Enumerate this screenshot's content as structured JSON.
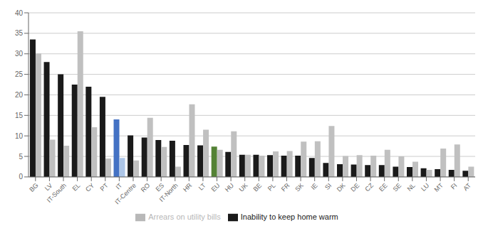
{
  "chart_data": {
    "type": "bar",
    "categories": [
      "BG",
      "LV",
      "IT-South",
      "EL",
      "CY",
      "PT",
      "IT",
      "IT-Centre",
      "RO",
      "ES",
      "IT-North",
      "HR",
      "LT",
      "EU",
      "HU",
      "UK",
      "BE",
      "PL",
      "FR",
      "SK",
      "IE",
      "SI",
      "DK",
      "DE",
      "CZ",
      "EE",
      "SE",
      "NL",
      "LU",
      "MT",
      "FI",
      "AT"
    ],
    "series": [
      {
        "name": "Inability to keep home warm",
        "color": "#1a1a1a",
        "colors": [
          "#1a1a1a",
          "#1a1a1a",
          "#1a1a1a",
          "#1a1a1a",
          "#1a1a1a",
          "#1a1a1a",
          "#4472c4",
          "#1a1a1a",
          "#1a1a1a",
          "#1a1a1a",
          "#1a1a1a",
          "#1a1a1a",
          "#1a1a1a",
          "#548235",
          "#1a1a1a",
          "#1a1a1a",
          "#1a1a1a",
          "#1a1a1a",
          "#1a1a1a",
          "#1a1a1a",
          "#1a1a1a",
          "#1a1a1a",
          "#1a1a1a",
          "#1a1a1a",
          "#1a1a1a",
          "#1a1a1a",
          "#1a1a1a",
          "#1a1a1a",
          "#1a1a1a",
          "#1a1a1a",
          "#1a1a1a",
          "#1a1a1a"
        ],
        "values": [
          33.5,
          28.0,
          25.0,
          22.5,
          22.0,
          19.5,
          14.0,
          10.1,
          9.6,
          9.0,
          8.8,
          7.8,
          7.7,
          7.4,
          6.1,
          5.4,
          5.4,
          5.3,
          5.2,
          5.2,
          4.6,
          3.4,
          3.1,
          3.0,
          2.9,
          2.9,
          2.5,
          2.4,
          2.1,
          1.9,
          1.7,
          1.5
        ]
      },
      {
        "name": "Arrears on utility bills",
        "color": "#b8b8b8",
        "colors": [
          "#c0c0c0",
          "#c0c0c0",
          "#c0c0c0",
          "#c0c0c0",
          "#c0c0c0",
          "#c0c0c0",
          "#adc6e8",
          "#c0c0c0",
          "#c0c0c0",
          "#c0c0c0",
          "#c0c0c0",
          "#c0c0c0",
          "#c0c0c0",
          "#c0c0c0",
          "#c0c0c0",
          "#c0c0c0",
          "#c0c0c0",
          "#c0c0c0",
          "#c0c0c0",
          "#c0c0c0",
          "#c0c0c0",
          "#c0c0c0",
          "#c0c0c0",
          "#c0c0c0",
          "#c0c0c0",
          "#c0c0c0",
          "#c0c0c0",
          "#c0c0c0",
          "#c0c0c0",
          "#c0c0c0",
          "#c0c0c0",
          "#c0c0c0"
        ],
        "values": [
          30.1,
          9.1,
          7.6,
          35.5,
          12.1,
          4.5,
          4.6,
          4.0,
          14.4,
          7.3,
          2.5,
          17.7,
          11.5,
          6.6,
          11.1,
          5.4,
          5.2,
          6.2,
          6.3,
          8.6,
          8.7,
          12.4,
          5.1,
          5.3,
          5.2,
          6.6,
          5.0,
          3.7,
          1.7,
          6.9,
          7.9,
          2.5
        ]
      }
    ],
    "ylim": [
      0,
      40
    ],
    "yticks": [
      0,
      5,
      10,
      15,
      20,
      25,
      30,
      35,
      40
    ],
    "grid": true,
    "legend": "bottom"
  }
}
